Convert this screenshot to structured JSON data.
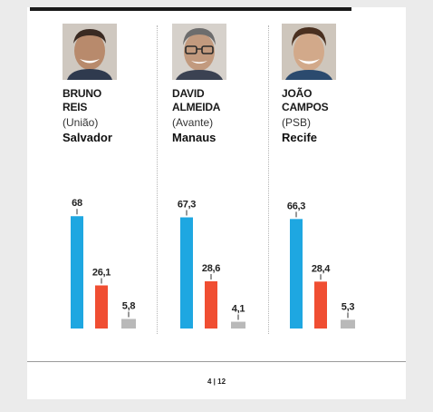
{
  "page": {
    "number": "4 | 12"
  },
  "colors": {
    "blue": "#1ea7e1",
    "red": "#f04e32",
    "gray": "#b9b9b9"
  },
  "candidates": [
    {
      "first": "BRUNO",
      "last": "REIS",
      "party": "(União)",
      "city": "Salvador"
    },
    {
      "first": "DAVID",
      "last": "ALMEIDA",
      "party": "(Avante)",
      "city": "Manaus"
    },
    {
      "first": "JOÃO",
      "last": "CAMPOS",
      "party": "(PSB)",
      "city": "Recife"
    }
  ],
  "chart_data": [
    {
      "type": "bar",
      "title": "",
      "values": [
        68,
        26.1,
        5.8
      ],
      "labels": [
        "68",
        "26,1",
        "5,8"
      ],
      "colors": [
        "#1ea7e1",
        "#f04e32",
        "#b9b9b9"
      ],
      "ylim": [
        0,
        100
      ]
    },
    {
      "type": "bar",
      "title": "",
      "values": [
        67.3,
        28.6,
        4.1
      ],
      "labels": [
        "67,3",
        "28,6",
        "4,1"
      ],
      "colors": [
        "#1ea7e1",
        "#f04e32",
        "#b9b9b9"
      ],
      "ylim": [
        0,
        100
      ]
    },
    {
      "type": "bar",
      "title": "",
      "values": [
        66.3,
        28.4,
        5.3
      ],
      "labels": [
        "66,3",
        "28,4",
        "5,3"
      ],
      "colors": [
        "#1ea7e1",
        "#f04e32",
        "#b9b9b9"
      ],
      "ylim": [
        0,
        100
      ]
    }
  ]
}
